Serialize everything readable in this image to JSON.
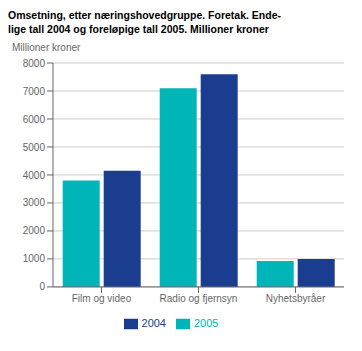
{
  "chart_data": {
    "type": "bar",
    "title": "Omsetning, etter næringshovedgruppe. Foretak. Ende-\nlige tall 2004 og foreløpige tall 2005. Millioner kroner",
    "y_label": "Millioner kroner",
    "categories": [
      "Film og video",
      "Radio og fjernsyn",
      "Nyhetsbyråer"
    ],
    "series": [
      {
        "name": "2005",
        "color": "#00b5b8",
        "values": [
          3800,
          7100,
          930
        ]
      },
      {
        "name": "2004",
        "color": "#1a3d8f",
        "values": [
          4150,
          7600,
          1000
        ]
      }
    ],
    "ylim": [
      0,
      8000
    ],
    "yticks": [
      0,
      1000,
      2000,
      3000,
      4000,
      5000,
      6000,
      7000,
      8000
    ],
    "grid": true,
    "legend": "bottom"
  }
}
